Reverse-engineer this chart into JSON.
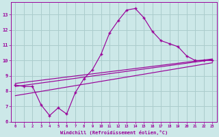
{
  "xlabel": "Windchill (Refroidissement éolien,°C)",
  "bg_color": "#cce8e8",
  "grid_color": "#aacccc",
  "line_color": "#990099",
  "xlim": [
    -0.5,
    23.5
  ],
  "ylim": [
    6.0,
    13.8
  ],
  "yticks": [
    6,
    7,
    8,
    9,
    10,
    11,
    12,
    13
  ],
  "xticks": [
    0,
    1,
    2,
    3,
    4,
    5,
    6,
    7,
    8,
    9,
    10,
    11,
    12,
    13,
    14,
    15,
    16,
    17,
    18,
    19,
    20,
    21,
    22,
    23
  ],
  "main_x": [
    0,
    1,
    2,
    3,
    4,
    5,
    6,
    7,
    8,
    9,
    10,
    11,
    12,
    13,
    14,
    15,
    16,
    17,
    18,
    19,
    20,
    21,
    22,
    23
  ],
  "main_y": [
    8.4,
    8.3,
    8.3,
    7.1,
    6.4,
    6.9,
    6.5,
    7.9,
    8.8,
    9.4,
    10.4,
    11.8,
    12.6,
    13.3,
    13.4,
    12.8,
    11.9,
    11.3,
    11.1,
    10.9,
    10.3,
    10.0,
    10.0,
    10.0
  ],
  "line1_x": [
    0,
    23
  ],
  "line1_y": [
    8.5,
    10.1
  ],
  "line2_x": [
    0,
    23
  ],
  "line2_y": [
    8.3,
    10.05
  ],
  "line3_x": [
    0,
    23
  ],
  "line3_y": [
    7.7,
    9.85
  ]
}
